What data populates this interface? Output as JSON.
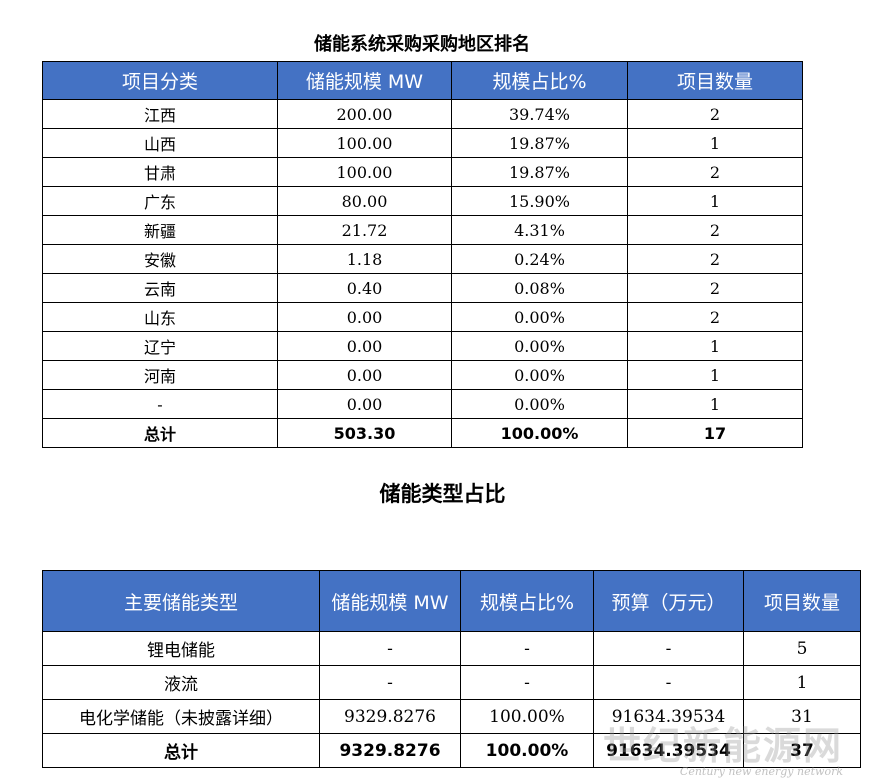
{
  "table1": {
    "title": "储能系统采购采购地区排名",
    "headers": [
      "项目分类",
      "储能规模 MW",
      "规模占比%",
      "项目数量"
    ],
    "rows": [
      [
        "江西",
        "200.00",
        "39.74%",
        "2"
      ],
      [
        "山西",
        "100.00",
        "19.87%",
        "1"
      ],
      [
        "甘肃",
        "100.00",
        "19.87%",
        "2"
      ],
      [
        "广东",
        "80.00",
        "15.90%",
        "1"
      ],
      [
        "新疆",
        "21.72",
        "4.31%",
        "2"
      ],
      [
        "安徽",
        "1.18",
        "0.24%",
        "2"
      ],
      [
        "云南",
        "0.40",
        "0.08%",
        "2"
      ],
      [
        "山东",
        "0.00",
        "0.00%",
        "2"
      ],
      [
        "辽宁",
        "0.00",
        "0.00%",
        "1"
      ],
      [
        "河南",
        "0.00",
        "0.00%",
        "1"
      ],
      [
        "-",
        "0.00",
        "0.00%",
        "1"
      ]
    ],
    "total": [
      "总计",
      "503.30",
      "100.00%",
      "17"
    ]
  },
  "table2": {
    "title": "储能类型占比",
    "headers": [
      "主要储能类型",
      "储能规模 MW",
      "规模占比%",
      "预算（万元）",
      "项目数量"
    ],
    "rows": [
      [
        "锂电储能",
        "-",
        "-",
        "-",
        "5"
      ],
      [
        "液流",
        "-",
        "-",
        "-",
        "1"
      ],
      [
        "电化学储能（未披露详细）",
        "9329.8276",
        "100.00%",
        "91634.39534",
        "31"
      ]
    ],
    "total": [
      "总计",
      "9329.8276",
      "100.00%",
      "91634.39534",
      "37"
    ]
  },
  "watermark": {
    "main": "世纪新能源网",
    "sub": "Century new energy network"
  },
  "colors": {
    "header_bg": "#4472c4",
    "header_text": "#ffffff"
  }
}
